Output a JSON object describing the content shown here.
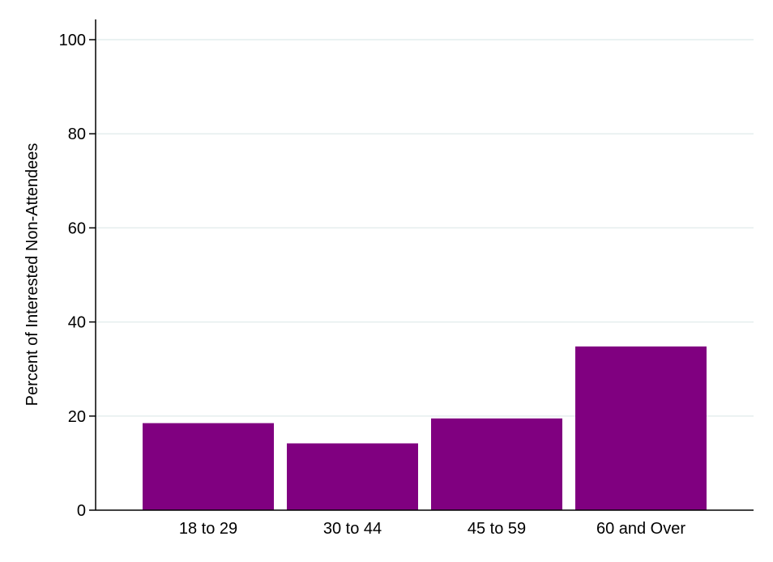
{
  "chart_data": {
    "type": "bar",
    "title": "",
    "xlabel": "",
    "ylabel": "Percent of Interested Non-Attendees",
    "categories": [
      "18 to 29",
      "30 to 44",
      "45 to 59",
      "60 and Over"
    ],
    "values": [
      18.5,
      14.2,
      19.5,
      34.8
    ],
    "ylim": [
      0,
      100
    ],
    "yticks": [
      0,
      20,
      40,
      60,
      80,
      100
    ],
    "ytick_labels": [
      "0",
      "20",
      "40",
      "60",
      "80",
      "100"
    ],
    "grid": true,
    "bar_color": "#800080",
    "grid_color": "#e4eeee"
  }
}
